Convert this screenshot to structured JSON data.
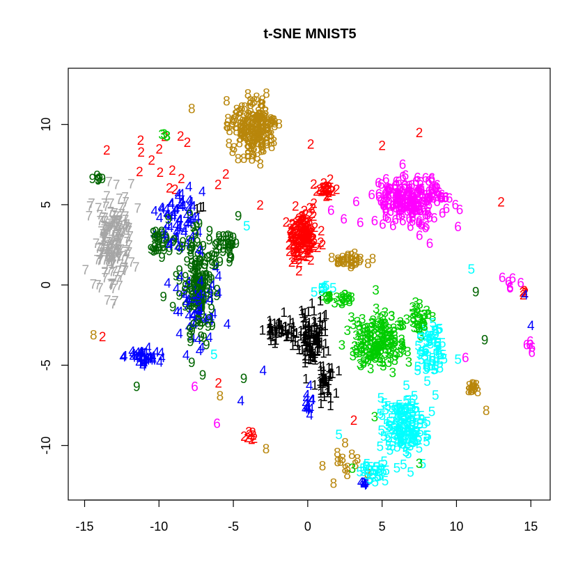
{
  "chart_data": {
    "type": "scatter",
    "title": "t-SNE MNIST5",
    "xlabel": "",
    "ylabel": "",
    "xlim": [
      -16.1,
      16.3
    ],
    "ylim": [
      -13.4,
      13.5
    ],
    "x_ticks": [
      -15,
      -10,
      -5,
      0,
      5,
      10,
      15
    ],
    "y_ticks": [
      -10,
      -5,
      0,
      5,
      10
    ],
    "x_tick_labels": [
      "-15",
      "-10",
      "-5",
      "0",
      "5",
      "10",
      "15"
    ],
    "y_tick_labels": [
      "-10",
      "-5",
      "0",
      "5",
      "10"
    ],
    "grid": false,
    "legend": "none",
    "colors": {
      "1": "#000000",
      "2": "#ff0000",
      "3": "#00cc00",
      "4": "#0000ff",
      "5": "#00ffff",
      "6": "#ff00ff",
      "7": "#a6a6a6",
      "8": "#b8860b",
      "9": "#006400"
    },
    "series": [
      {
        "label": "1",
        "clusters": [
          {
            "center": [
              0.2,
              -3.2
            ],
            "spread": [
              0.9,
              1.6
            ],
            "count": 110
          },
          {
            "center": [
              1.2,
              -5.8
            ],
            "spread": [
              0.5,
              1.1
            ],
            "count": 40
          },
          {
            "center": [
              -1.8,
              -2.8
            ],
            "spread": [
              1.0,
              0.7
            ],
            "count": 45
          },
          {
            "center": [
              -7.2,
              5.0
            ],
            "spread": [
              0.3,
              0.2
            ],
            "count": 3
          }
        ]
      },
      {
        "label": "2",
        "clusters": [
          {
            "center": [
              -0.3,
              3.0
            ],
            "spread": [
              0.9,
              1.6
            ],
            "count": 150
          },
          {
            "center": [
              1.2,
              6.0
            ],
            "spread": [
              0.8,
              0.6
            ],
            "count": 25
          },
          {
            "center": [
              -3.8,
              -9.3
            ],
            "spread": [
              0.5,
              0.3
            ],
            "count": 8
          },
          {
            "center": [
              -9.0,
              8.0
            ],
            "spread": [
              4.0,
              1.5
            ],
            "count": 14
          },
          {
            "center": [
              14.5,
              -0.5
            ],
            "spread": [
              0.2,
              0.3
            ],
            "count": 4
          }
        ]
      },
      {
        "label": "3",
        "clusters": [
          {
            "center": [
              4.8,
              -3.5
            ],
            "spread": [
              1.7,
              1.5
            ],
            "count": 170
          },
          {
            "center": [
              2.2,
              -0.8
            ],
            "spread": [
              1.0,
              0.3
            ],
            "count": 25
          },
          {
            "center": [
              7.5,
              -2.0
            ],
            "spread": [
              0.8,
              1.0
            ],
            "count": 30
          },
          {
            "center": [
              -9.6,
              9.3
            ],
            "spread": [
              0.2,
              0.1
            ],
            "count": 3
          }
        ]
      },
      {
        "label": "4",
        "clusters": [
          {
            "center": [
              -8.8,
              4.0
            ],
            "spread": [
              1.2,
              1.8
            ],
            "count": 60
          },
          {
            "center": [
              -11.0,
              -4.5
            ],
            "spread": [
              1.3,
              0.4
            ],
            "count": 40
          },
          {
            "center": [
              -7.5,
              -1.5
            ],
            "spread": [
              1.3,
              2.5
            ],
            "count": 60
          },
          {
            "center": [
              0.0,
              -7.5
            ],
            "spread": [
              0.3,
              0.9
            ],
            "count": 12
          },
          {
            "center": [
              3.8,
              -12.3
            ],
            "spread": [
              0.3,
              0.2
            ],
            "count": 6
          }
        ]
      },
      {
        "label": "5",
        "clusters": [
          {
            "center": [
              6.5,
              -8.8
            ],
            "spread": [
              1.3,
              1.9
            ],
            "count": 140
          },
          {
            "center": [
              8.5,
              -4.0
            ],
            "spread": [
              1.0,
              1.5
            ],
            "count": 60
          },
          {
            "center": [
              4.5,
              -11.5
            ],
            "spread": [
              0.9,
              0.7
            ],
            "count": 30
          },
          {
            "center": [
              1.0,
              -0.2
            ],
            "spread": [
              0.6,
              0.2
            ],
            "count": 8
          }
        ]
      },
      {
        "label": "6",
        "clusters": [
          {
            "center": [
              6.8,
              5.3
            ],
            "spread": [
              2.3,
              1.3
            ],
            "count": 200
          },
          {
            "center": [
              15.0,
              -3.8
            ],
            "spread": [
              0.3,
              0.8
            ],
            "count": 5
          },
          {
            "center": [
              13.8,
              0.3
            ],
            "spread": [
              0.5,
              0.5
            ],
            "count": 6
          }
        ]
      },
      {
        "label": "7",
        "clusters": [
          {
            "center": [
              -13.0,
              2.5
            ],
            "spread": [
              1.1,
              2.8
            ],
            "count": 200
          }
        ]
      },
      {
        "label": "8",
        "clusters": [
          {
            "center": [
              -3.6,
              9.8
            ],
            "spread": [
              1.4,
              1.5
            ],
            "count": 170
          },
          {
            "center": [
              2.8,
              1.6
            ],
            "spread": [
              1.1,
              0.35
            ],
            "count": 30
          },
          {
            "center": [
              11.2,
              -6.2
            ],
            "spread": [
              0.3,
              0.4
            ],
            "count": 12
          },
          {
            "center": [
              2.6,
              -11.2
            ],
            "spread": [
              1.2,
              0.9
            ],
            "count": 14
          }
        ]
      },
      {
        "label": "9",
        "clusters": [
          {
            "center": [
              -7.4,
              0.5
            ],
            "spread": [
              1.0,
              3.3
            ],
            "count": 150
          },
          {
            "center": [
              -10.0,
              2.8
            ],
            "spread": [
              0.6,
              0.9
            ],
            "count": 30
          },
          {
            "center": [
              -5.4,
              2.5
            ],
            "spread": [
              0.7,
              1.2
            ],
            "count": 30
          },
          {
            "center": [
              -14.1,
              6.6
            ],
            "spread": [
              0.3,
              0.2
            ],
            "count": 6
          }
        ]
      }
    ],
    "scattered_points": [
      {
        "label": "2",
        "x": 7.5,
        "y": 9.5
      },
      {
        "label": "2",
        "x": 13.0,
        "y": 5.2
      },
      {
        "label": "2",
        "x": 5.0,
        "y": 8.7
      },
      {
        "label": "2",
        "x": -11.2,
        "y": 8.3
      },
      {
        "label": "2",
        "x": -10.5,
        "y": 7.8
      },
      {
        "label": "2",
        "x": -3.2,
        "y": 5.0
      },
      {
        "label": "2",
        "x": 0.2,
        "y": 8.8
      },
      {
        "label": "2",
        "x": 3.1,
        "y": -8.4
      },
      {
        "label": "2",
        "x": -13.8,
        "y": -3.2
      },
      {
        "label": "2",
        "x": -6.0,
        "y": -6.1
      },
      {
        "label": "3",
        "x": -9.8,
        "y": 9.4
      },
      {
        "label": "3",
        "x": 7.5,
        "y": -11.1
      },
      {
        "label": "3",
        "x": 4.5,
        "y": -8.2
      },
      {
        "label": "3",
        "x": 3.0,
        "y": -11.4
      },
      {
        "label": "4",
        "x": 15.0,
        "y": -2.5
      },
      {
        "label": "4",
        "x": 14.6,
        "y": -0.6
      },
      {
        "label": "4",
        "x": -4.5,
        "y": -7.2
      },
      {
        "label": "4",
        "x": -3.0,
        "y": -5.3
      },
      {
        "label": "5",
        "x": 11.0,
        "y": 1.0
      },
      {
        "label": "5",
        "x": 2.1,
        "y": -9.3
      },
      {
        "label": "5",
        "x": -6.3,
        "y": -4.3
      },
      {
        "label": "5",
        "x": -4.1,
        "y": 3.7
      },
      {
        "label": "6",
        "x": 8.2,
        "y": 2.6
      },
      {
        "label": "6",
        "x": 10.6,
        "y": -4.5
      },
      {
        "label": "6",
        "x": -6.1,
        "y": -8.6
      },
      {
        "label": "6",
        "x": -7.6,
        "y": -6.3
      },
      {
        "label": "8",
        "x": -7.8,
        "y": 11.0
      },
      {
        "label": "8",
        "x": 12.0,
        "y": -7.8
      },
      {
        "label": "8",
        "x": -2.8,
        "y": -10.2
      },
      {
        "label": "8",
        "x": -14.4,
        "y": -3.1
      },
      {
        "label": "8",
        "x": -5.9,
        "y": -6.9
      },
      {
        "label": "9",
        "x": 11.3,
        "y": -0.4
      },
      {
        "label": "9",
        "x": 11.9,
        "y": -3.4
      },
      {
        "label": "9",
        "x": -4.3,
        "y": -5.8
      },
      {
        "label": "9",
        "x": -9.7,
        "y": -0.7
      },
      {
        "label": "9",
        "x": -11.5,
        "y": -6.3
      }
    ]
  }
}
